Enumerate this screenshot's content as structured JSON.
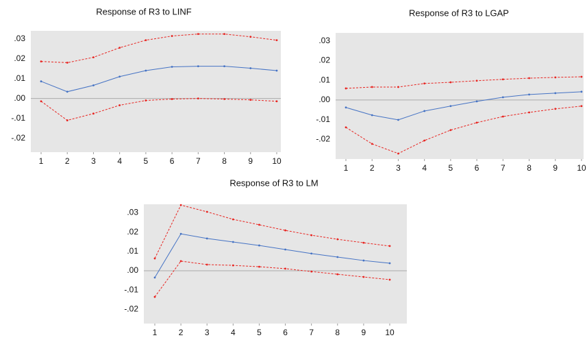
{
  "chart_data": [
    {
      "type": "line",
      "title": "Response of R3 to LINF",
      "x": [
        1,
        2,
        3,
        4,
        5,
        6,
        7,
        8,
        9,
        10
      ],
      "xlim": [
        1,
        10
      ],
      "xticks": [
        1,
        2,
        3,
        4,
        5,
        6,
        7,
        8,
        9,
        10
      ],
      "ylim": [
        -0.027,
        0.034
      ],
      "yticks": [
        {
          "value": 0.03,
          "label": ".03"
        },
        {
          "value": 0.02,
          "label": ".02"
        },
        {
          "value": 0.01,
          "label": ".01"
        },
        {
          "value": 0,
          "label": ".00"
        },
        {
          "value": -0.01,
          "label": "-.01"
        },
        {
          "value": -0.02,
          "label": "-.02"
        }
      ],
      "zero_line": true,
      "series": [
        {
          "color": "#4472c4",
          "style": "solid",
          "values": [
            0.0086,
            0.0034,
            0.0066,
            0.011,
            0.014,
            0.0159,
            0.0162,
            0.0162,
            0.0152,
            0.014
          ]
        },
        {
          "color": "#e8231f",
          "style": "dashed",
          "values": [
            0.0186,
            0.018,
            0.0207,
            0.0255,
            0.0293,
            0.0314,
            0.0324,
            0.0324,
            0.031,
            0.0293
          ]
        },
        {
          "color": "#e8231f",
          "style": "dashed",
          "values": [
            -0.0014,
            -0.011,
            -0.0076,
            -0.0034,
            -0.001,
            -0.0003,
            0,
            -0.0003,
            -0.0007,
            -0.0014
          ]
        }
      ]
    },
    {
      "type": "line",
      "title": "Response of R3 to LGAP",
      "x": [
        1,
        2,
        3,
        4,
        5,
        6,
        7,
        8,
        9,
        10
      ],
      "xlim": [
        1,
        10
      ],
      "xticks": [
        1,
        2,
        3,
        4,
        5,
        6,
        7,
        8,
        9,
        10
      ],
      "ylim": [
        -0.03,
        0.0341
      ],
      "yticks": [
        {
          "value": 0.03,
          "label": ".03"
        },
        {
          "value": 0.02,
          "label": ".02"
        },
        {
          "value": 0.01,
          "label": ".01"
        },
        {
          "value": 0,
          "label": ".00"
        },
        {
          "value": -0.01,
          "label": "-.01"
        },
        {
          "value": -0.02,
          "label": "-.02"
        }
      ],
      "zero_line": true,
      "series": [
        {
          "color": "#4472c4",
          "style": "solid",
          "values": [
            -0.0038,
            -0.0077,
            -0.0101,
            -0.0056,
            -0.0031,
            -0.0007,
            0.0014,
            0.0028,
            0.0035,
            0.0042
          ]
        },
        {
          "color": "#e8231f",
          "style": "dashed",
          "values": [
            0.0059,
            0.0066,
            0.0066,
            0.0084,
            0.009,
            0.0098,
            0.0105,
            0.0111,
            0.0115,
            0.0118
          ]
        },
        {
          "color": "#e8231f",
          "style": "dashed",
          "values": [
            -0.0139,
            -0.0223,
            -0.0272,
            -0.0206,
            -0.0153,
            -0.0115,
            -0.0084,
            -0.0063,
            -0.0045,
            -0.0031
          ]
        }
      ]
    },
    {
      "type": "line",
      "title": "Response of R3 to LM",
      "x": [
        1,
        2,
        3,
        4,
        5,
        6,
        7,
        8,
        9,
        10
      ],
      "xlim": [
        1,
        10
      ],
      "xticks": [
        1,
        2,
        3,
        4,
        5,
        6,
        7,
        8,
        9,
        10
      ],
      "ylim": [
        -0.0273,
        0.0344
      ],
      "yticks": [
        {
          "value": 0.03,
          "label": ".03"
        },
        {
          "value": 0.02,
          "label": ".02"
        },
        {
          "value": 0.01,
          "label": ".01"
        },
        {
          "value": 0,
          "label": ".00"
        },
        {
          "value": -0.01,
          "label": "-.01"
        },
        {
          "value": -0.02,
          "label": "-.02"
        }
      ],
      "zero_line": true,
      "series": [
        {
          "color": "#4472c4",
          "style": "solid",
          "values": [
            -0.0035,
            0.0191,
            0.0167,
            0.0149,
            0.0131,
            0.011,
            0.0089,
            0.0071,
            0.0053,
            0.0039
          ]
        },
        {
          "color": "#e8231f",
          "style": "dashed",
          "values": [
            0.0064,
            0.034,
            0.0305,
            0.0266,
            0.0238,
            0.0209,
            0.0184,
            0.0163,
            0.0145,
            0.0128
          ]
        },
        {
          "color": "#e8231f",
          "style": "dashed",
          "values": [
            -0.0135,
            0.005,
            0.0032,
            0.0028,
            0.0021,
            0.0011,
            -0.0004,
            -0.0018,
            -0.0032,
            -0.0046
          ]
        }
      ]
    }
  ]
}
